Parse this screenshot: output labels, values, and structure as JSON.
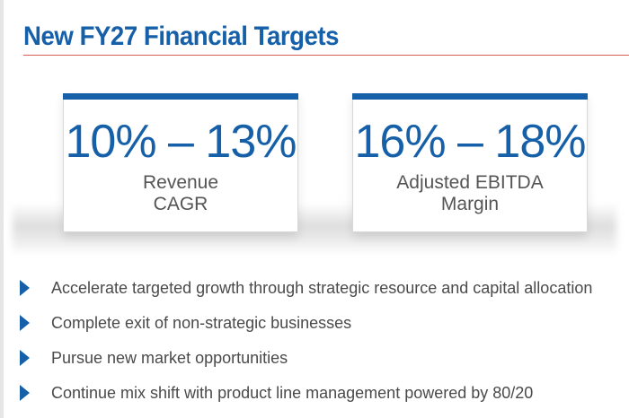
{
  "title": "New FY27 Financial Targets",
  "accent_color": "#1560a8",
  "rule_color": "#d85a5a",
  "cards": [
    {
      "value": "10% – 13%",
      "label_line1": "Revenue",
      "label_line2": "CAGR"
    },
    {
      "value": "16% – 18%",
      "label_line1": "Adjusted EBITDA",
      "label_line2": "Margin"
    }
  ],
  "bullet_icon": "triangle-right-icon",
  "bullets": [
    "Accelerate targeted growth through strategic resource and capital allocation",
    "Complete exit of non-strategic businesses",
    "Pursue new market opportunities",
    "Continue mix shift with product line management powered by 80/20"
  ]
}
